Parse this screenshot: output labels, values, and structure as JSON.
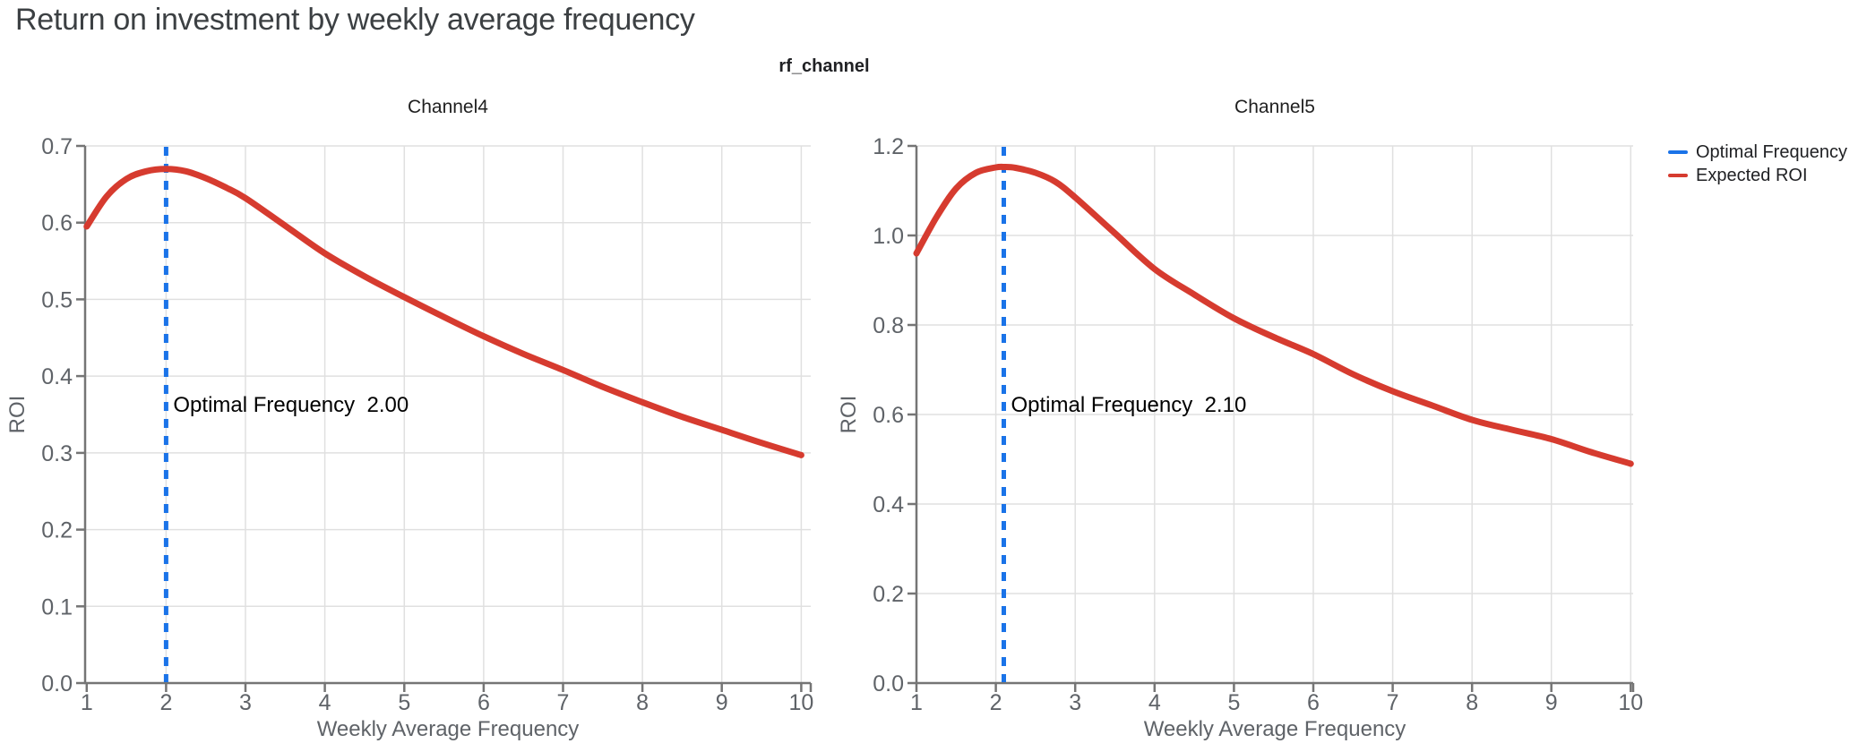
{
  "page": {
    "title": "Return on investment by weekly average frequency",
    "facet_title": "rf_channel"
  },
  "colors": {
    "expected_roi_line": "#d63b2f",
    "optimal_frequency_line": "#1a73e8",
    "grid_line": "#e0e0e0",
    "axis_line": "#757575",
    "tick_label": "#5f6368",
    "axis_label": "#5f6368",
    "page_title": "#3c4043",
    "chart_title": "#1f1f1f",
    "annotation_text": "#000000",
    "legend_text": "#202124"
  },
  "legend": {
    "position": "top-right",
    "items": [
      {
        "label": "Optimal Frequency",
        "color": "#1a73e8"
      },
      {
        "label": "Expected ROI",
        "color": "#d63b2f"
      }
    ]
  },
  "chart_data": [
    {
      "type": "line",
      "title": "Channel4",
      "xlabel": "Weekly Average Frequency",
      "ylabel": "ROI",
      "grid": true,
      "xlim": [
        0.98,
        10.12
      ],
      "ylim": [
        0,
        0.7
      ],
      "x_ticks": [
        1,
        2,
        3,
        4,
        5,
        6,
        7,
        8,
        9,
        10
      ],
      "y_ticks": [
        "0.0",
        "0.1",
        "0.2",
        "0.3",
        "0.4",
        "0.5",
        "0.6",
        "0.7"
      ],
      "optimal_frequency": 2.0,
      "annotation": {
        "label": "Optimal Frequency",
        "value": "2.00"
      },
      "series": [
        {
          "name": "Expected ROI",
          "x": [
            1,
            1.25,
            1.5,
            1.75,
            2,
            2.25,
            2.5,
            2.75,
            3,
            3.5,
            4,
            4.5,
            5,
            5.5,
            6,
            6.5,
            7,
            7.5,
            8,
            8.5,
            9,
            9.5,
            10
          ],
          "y": [
            0.595,
            0.634,
            0.657,
            0.667,
            0.67,
            0.667,
            0.658,
            0.646,
            0.632,
            0.596,
            0.56,
            0.53,
            0.503,
            0.477,
            0.452,
            0.429,
            0.408,
            0.386,
            0.366,
            0.347,
            0.33,
            0.313,
            0.297
          ]
        }
      ]
    },
    {
      "type": "line",
      "title": "Channel5",
      "xlabel": "Weekly Average Frequency",
      "ylabel": "ROI",
      "grid": true,
      "xlim": [
        1.0,
        10.03
      ],
      "ylim": [
        0,
        1.2
      ],
      "x_ticks": [
        1,
        2,
        3,
        4,
        5,
        6,
        7,
        8,
        9,
        10
      ],
      "y_ticks": [
        "0.0",
        "0.2",
        "0.4",
        "0.6",
        "0.8",
        "1.0",
        "1.2"
      ],
      "optimal_frequency": 2.1,
      "annotation": {
        "label": "Optimal Frequency",
        "value": "2.10"
      },
      "series": [
        {
          "name": "Expected ROI",
          "x": [
            1,
            1.25,
            1.5,
            1.75,
            2,
            2.1,
            2.25,
            2.5,
            2.75,
            3,
            3.5,
            4,
            4.5,
            5,
            5.5,
            6,
            6.5,
            7,
            7.5,
            8,
            8.5,
            9,
            9.5,
            10
          ],
          "y": [
            0.96,
            1.04,
            1.105,
            1.14,
            1.152,
            1.153,
            1.151,
            1.14,
            1.12,
            1.085,
            1.005,
            0.925,
            0.868,
            0.815,
            0.773,
            0.735,
            0.69,
            0.652,
            0.62,
            0.588,
            0.566,
            0.545,
            0.516,
            0.49
          ]
        }
      ]
    }
  ]
}
